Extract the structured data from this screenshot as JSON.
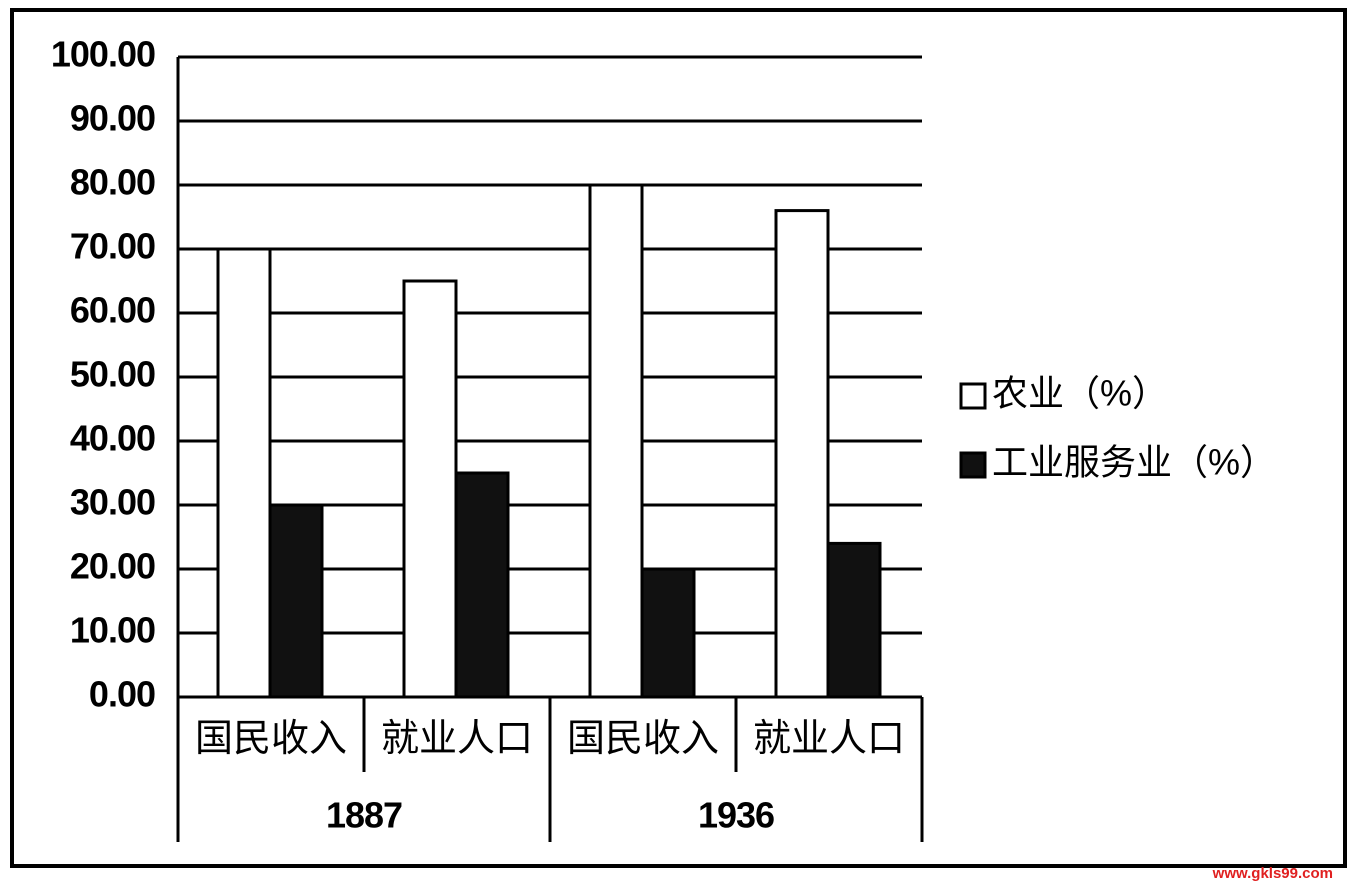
{
  "chart_data": {
    "type": "bar",
    "categories": [
      "国民收入",
      "就业人口",
      "国民收入",
      "就业人口"
    ],
    "groups": [
      "1887",
      "1936"
    ],
    "series": [
      {
        "name": "农业（%）",
        "color": "#ffffff",
        "values": [
          70,
          65,
          80,
          76
        ]
      },
      {
        "name": "工业服务业（%）",
        "color": "#111111",
        "values": [
          30,
          35,
          20,
          24
        ]
      }
    ],
    "ylim": [
      0,
      100
    ],
    "yticks": [
      {
        "value": 0,
        "label": "0.00"
      },
      {
        "value": 10,
        "label": "10.00"
      },
      {
        "value": 20,
        "label": "20.00"
      },
      {
        "value": 30,
        "label": "30.00"
      },
      {
        "value": 40,
        "label": "40.00"
      },
      {
        "value": 50,
        "label": "50.00"
      },
      {
        "value": 60,
        "label": "60.00"
      },
      {
        "value": 70,
        "label": "70.00"
      },
      {
        "value": 80,
        "label": "80.00"
      },
      {
        "value": 90,
        "label": "90.00"
      },
      {
        "value": 100,
        "label": "100.00"
      }
    ],
    "grid": true,
    "legend": "right",
    "watermark": "www.gkls99.com"
  }
}
